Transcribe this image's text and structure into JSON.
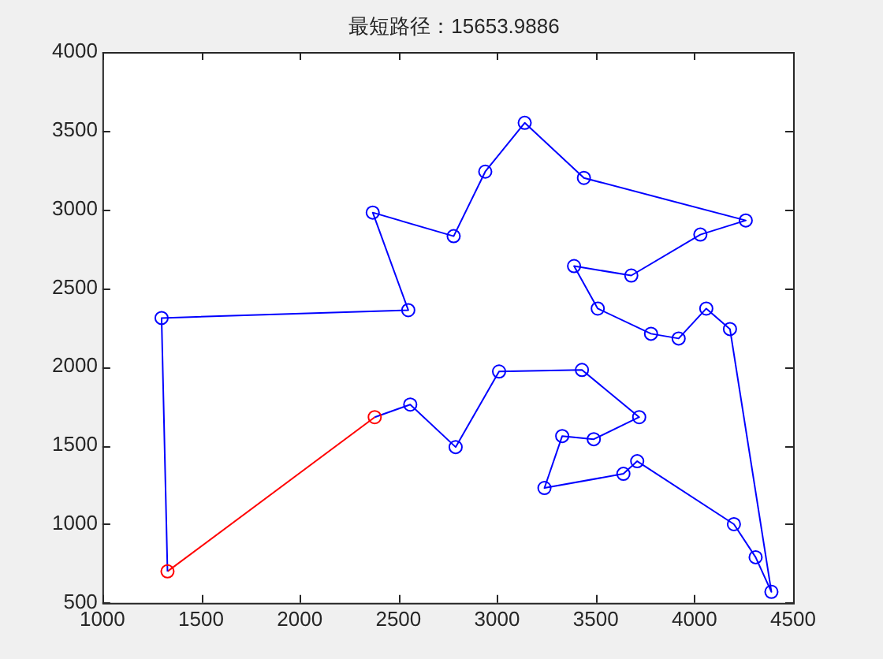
{
  "chart_data": {
    "type": "line",
    "title": "最短路径：15653.9886",
    "marker": "circle",
    "line_style": "solid",
    "grid": false,
    "legend": false,
    "xlim": [
      1000,
      4500
    ],
    "xticks": [
      1000,
      1500,
      2000,
      2500,
      3000,
      3500,
      4000,
      4500
    ],
    "ylim": [
      500,
      4000
    ],
    "yticks": [
      500,
      1000,
      1500,
      2000,
      2500,
      3000,
      3500,
      4000
    ],
    "series": [
      {
        "color": "#0000ff",
        "colors": [
          "#ff0000",
          "#0000ff",
          "#0000ff",
          "#0000ff",
          "#0000ff",
          "#0000ff",
          "#0000ff",
          "#0000ff",
          "#0000ff",
          "#0000ff",
          "#0000ff",
          "#0000ff",
          "#0000ff",
          "#0000ff",
          "#0000ff",
          "#0000ff",
          "#0000ff",
          "#0000ff",
          "#0000ff",
          "#0000ff",
          "#0000ff",
          "#0000ff",
          "#0000ff",
          "#0000ff",
          "#0000ff",
          "#0000ff",
          "#0000ff",
          "#0000ff",
          "#0000ff",
          "#0000ff",
          "#ff0000"
        ],
        "x": [
          2380,
          2560,
          2790,
          3010,
          3430,
          3720,
          3490,
          3330,
          3240,
          3640,
          3710,
          4200,
          4310,
          4390,
          4180,
          4060,
          3920,
          3780,
          3510,
          3390,
          3680,
          4030,
          4260,
          3440,
          3140,
          2940,
          2780,
          2370,
          2550,
          1300,
          1330
        ],
        "values": [
          1680,
          1760,
          1490,
          1970,
          1980,
          1680,
          1540,
          1560,
          1230,
          1320,
          1400,
          1000,
          790,
          570,
          2240,
          2370,
          2180,
          2210,
          2370,
          2640,
          2580,
          2840,
          2930,
          3200,
          3550,
          3240,
          2830,
          2980,
          2360,
          2310,
          700
        ]
      },
      {
        "color": "#ff0000",
        "marker": "none",
        "x": [
          1330,
          2380
        ],
        "values": [
          700,
          1680
        ]
      }
    ]
  }
}
